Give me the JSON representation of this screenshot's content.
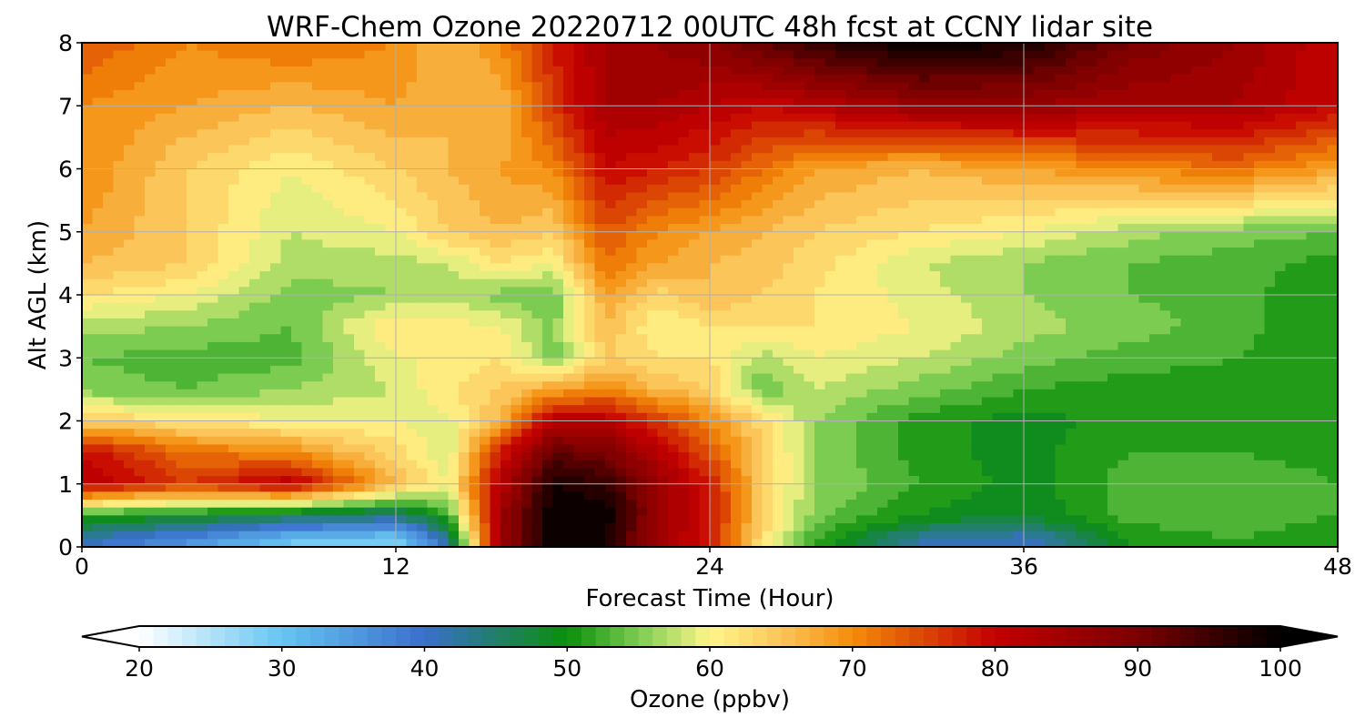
{
  "chart_data": {
    "type": "heatmap",
    "title": "WRF-Chem Ozone  20220712 00UTC 48h fcst at CCNY lidar site",
    "xlabel": "Forecast Time (Hour)",
    "ylabel": "Alt AGL (km)",
    "xlim": [
      0,
      48
    ],
    "ylim": [
      0,
      8
    ],
    "x_ticks": [
      0,
      12,
      24,
      36,
      48
    ],
    "y_ticks": [
      0,
      1,
      2,
      3,
      4,
      5,
      6,
      7,
      8
    ],
    "x_tick_labels": [
      "0",
      "12",
      "24",
      "36",
      "48"
    ],
    "y_tick_labels": [
      "0",
      "1",
      "2",
      "3",
      "4",
      "5",
      "6",
      "7",
      "8"
    ],
    "grid": true,
    "colorbar": {
      "label": "Ozone  (ppbv)",
      "min": 20,
      "max": 100,
      "ticks": [
        20,
        30,
        40,
        50,
        60,
        70,
        80,
        90,
        100
      ],
      "tick_labels": [
        "20",
        "30",
        "40",
        "50",
        "60",
        "70",
        "80",
        "90",
        "100"
      ],
      "extend": "both",
      "colors": [
        {
          "value": 20,
          "color": "#ffffff"
        },
        {
          "value": 30,
          "color": "#66c5f2"
        },
        {
          "value": 40,
          "color": "#3a6fcc"
        },
        {
          "value": 50,
          "color": "#0a8f0a"
        },
        {
          "value": 55,
          "color": "#7ccc52"
        },
        {
          "value": 60,
          "color": "#fff68a"
        },
        {
          "value": 65,
          "color": "#fbc55a"
        },
        {
          "value": 70,
          "color": "#f48c0a"
        },
        {
          "value": 80,
          "color": "#c40000"
        },
        {
          "value": 90,
          "color": "#7a0000"
        },
        {
          "value": 100,
          "color": "#000000"
        }
      ]
    },
    "x": [
      0,
      4,
      8,
      12,
      14,
      16,
      18,
      20,
      22,
      24,
      26,
      28,
      32,
      36,
      40,
      44,
      48
    ],
    "y": [
      0.1,
      0.5,
      1,
      1.5,
      2,
      2.5,
      3,
      3.5,
      4,
      4.5,
      5,
      6,
      7,
      8
    ],
    "z": [
      [
        41,
        36,
        30,
        28,
        42,
        85,
        100,
        98,
        85,
        78,
        62,
        52,
        42,
        40,
        50,
        52,
        50
      ],
      [
        51,
        49,
        46,
        44,
        52,
        85,
        100,
        100,
        86,
        79,
        64,
        55,
        50,
        48,
        53,
        54,
        52
      ],
      [
        82,
        76,
        82,
        66,
        60,
        82,
        98,
        96,
        86,
        78,
        64,
        56,
        52,
        49,
        53,
        54,
        52
      ],
      [
        80,
        72,
        70,
        63,
        58,
        78,
        92,
        90,
        82,
        74,
        64,
        56,
        51,
        49,
        52,
        52,
        51
      ],
      [
        64,
        62,
        60,
        60,
        59,
        67,
        82,
        82,
        76,
        70,
        63,
        56,
        51,
        49,
        51,
        51,
        50
      ],
      [
        55,
        54,
        56,
        58,
        62,
        64,
        68,
        70,
        66,
        64,
        54,
        58,
        55,
        52,
        51,
        51,
        50
      ],
      [
        54,
        53,
        53,
        60,
        60,
        62,
        55,
        64,
        62,
        62,
        57,
        60,
        58,
        55,
        53,
        52,
        50
      ],
      [
        57,
        56,
        54,
        62,
        61,
        60,
        55,
        66,
        60,
        62,
        62,
        62,
        60,
        57,
        55,
        53,
        50
      ],
      [
        62,
        60,
        55,
        56,
        57,
        55,
        54,
        68,
        63,
        66,
        64,
        62,
        59,
        56,
        54,
        53,
        50
      ],
      [
        66,
        64,
        57,
        57,
        58,
        62,
        60,
        72,
        68,
        66,
        65,
        63,
        58,
        56,
        54,
        53,
        51
      ],
      [
        68,
        64,
        58,
        60,
        64,
        66,
        64,
        74,
        70,
        68,
        66,
        64,
        62,
        60,
        57,
        55,
        54
      ],
      [
        70,
        64,
        60,
        64,
        66,
        68,
        70,
        80,
        78,
        76,
        72,
        68,
        66,
        68,
        70,
        72,
        68
      ],
      [
        70,
        68,
        66,
        68,
        66,
        66,
        76,
        84,
        84,
        82,
        80,
        82,
        86,
        86,
        84,
        84,
        80
      ],
      [
        74,
        70,
        72,
        70,
        66,
        70,
        78,
        84,
        86,
        88,
        92,
        96,
        100,
        98,
        90,
        86,
        80
      ]
    ]
  }
}
